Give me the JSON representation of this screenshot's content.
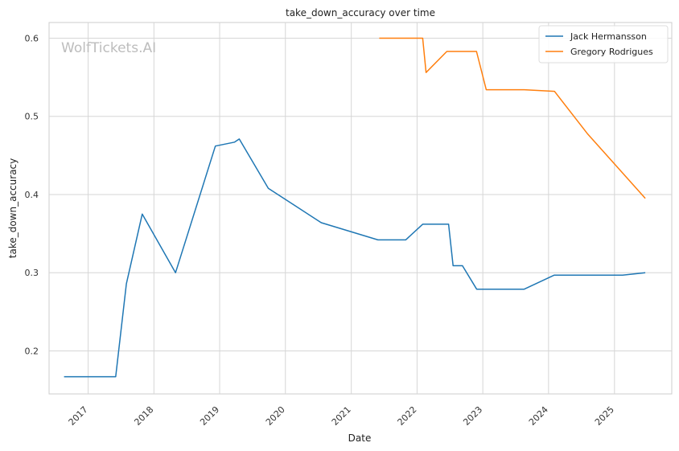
{
  "chart_data": {
    "type": "line",
    "title": "take_down_accuracy over time",
    "xlabel": "Date",
    "ylabel": "take_down_accuracy",
    "watermark": "WolfTickets.AI",
    "x_tick_labels": [
      "2017",
      "2018",
      "2019",
      "2020",
      "2021",
      "2022",
      "2023",
      "2024",
      "2025"
    ],
    "y_tick_labels": [
      "0.2",
      "0.3",
      "0.4",
      "0.5",
      "0.6"
    ],
    "xlim": [
      "2016-05-29",
      "2025-11-15"
    ],
    "ylim": [
      0.145,
      0.62
    ],
    "grid": true,
    "legend_position": "top-right",
    "series": [
      {
        "name": "Jack Hermansson",
        "color": "#1f77b4",
        "points": [
          [
            "2016-08-20",
            0.167
          ],
          [
            "2017-06-03",
            0.167
          ],
          [
            "2017-08-01",
            0.286
          ],
          [
            "2017-10-28",
            0.375
          ],
          [
            "2018-05-01",
            0.3
          ],
          [
            "2018-12-08",
            0.462
          ],
          [
            "2019-03-25",
            0.467
          ],
          [
            "2019-04-20",
            0.471
          ],
          [
            "2019-09-28",
            0.408
          ],
          [
            "2020-07-18",
            0.364
          ],
          [
            "2021-05-29",
            0.342
          ],
          [
            "2021-10-30",
            0.342
          ],
          [
            "2022-02-01",
            0.362
          ],
          [
            "2022-06-25",
            0.362
          ],
          [
            "2022-07-20",
            0.309
          ],
          [
            "2022-09-10",
            0.309
          ],
          [
            "2022-11-28",
            0.279
          ],
          [
            "2023-08-19",
            0.279
          ],
          [
            "2024-02-02",
            0.297
          ],
          [
            "2025-02-15",
            0.297
          ],
          [
            "2025-06-21",
            0.3
          ]
        ]
      },
      {
        "name": "Gregory Rodrigues",
        "color": "#ff7f0e",
        "points": [
          [
            "2021-06-05",
            0.6
          ],
          [
            "2022-02-01",
            0.6
          ],
          [
            "2022-02-20",
            0.556
          ],
          [
            "2022-06-15",
            0.583
          ],
          [
            "2022-11-27",
            0.583
          ],
          [
            "2023-01-20",
            0.534
          ],
          [
            "2023-08-19",
            0.534
          ],
          [
            "2024-02-03",
            0.532
          ],
          [
            "2024-08-03",
            0.478
          ],
          [
            "2025-06-21",
            0.395
          ]
        ]
      }
    ]
  }
}
